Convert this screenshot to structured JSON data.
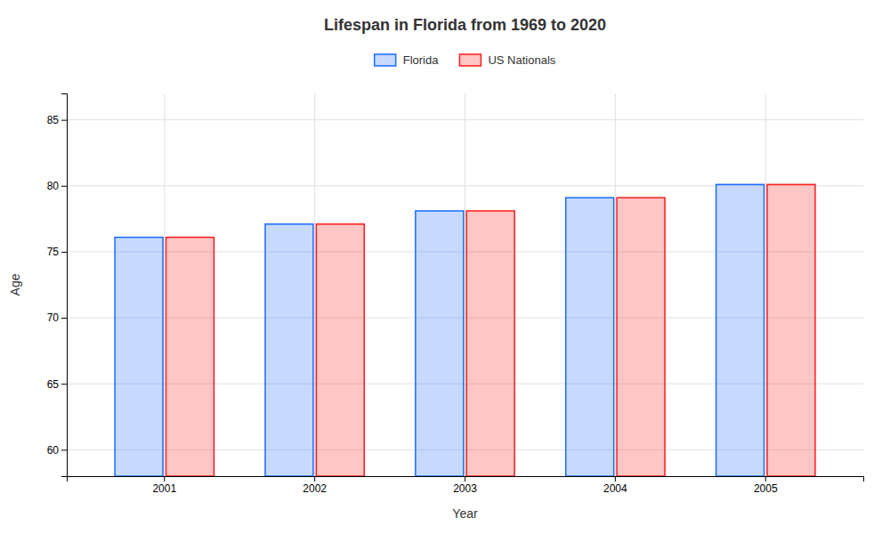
{
  "chart_data": {
    "type": "bar",
    "title": "Lifespan in Florida from 1969 to 2020",
    "xlabel": "Year",
    "ylabel": "Age",
    "categories": [
      "2001",
      "2002",
      "2003",
      "2004",
      "2005"
    ],
    "series": [
      {
        "name": "Florida",
        "color": "#1a6bff",
        "values": [
          76.1,
          77.1,
          78.1,
          79.1,
          80.1
        ]
      },
      {
        "name": "US Nationals",
        "color": "#ff1a1a",
        "values": [
          76.1,
          77.1,
          78.1,
          79.1,
          80.1
        ]
      }
    ],
    "ylim": [
      58,
      87
    ],
    "yticks": [
      60,
      65,
      70,
      75,
      80,
      85
    ],
    "grid": true,
    "legend": "top"
  }
}
